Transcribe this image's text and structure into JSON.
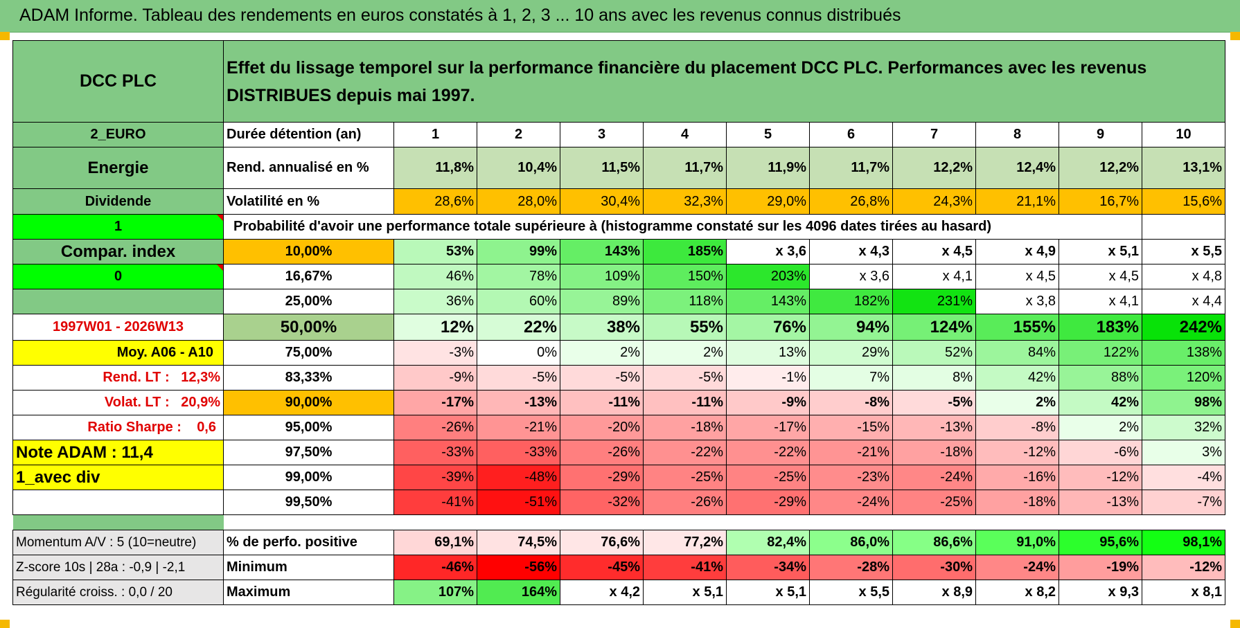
{
  "title": "ADAM Informe. Tableau des rendements en euros constatés à 1, 2, 3 ... 10 ans avec les revenus connus distribués",
  "side": {
    "name": "DCC PLC",
    "currency": "2_EURO",
    "sector": "Energie",
    "type": "Dividende",
    "flag1": "1",
    "compar": "Compar. index",
    "flag0": "0",
    "period": "1997W01 - 2026W13",
    "moy": "Moy. A06 - A10",
    "rend_label": "Rend. LT :",
    "rend_val": "12,3%",
    "volat_label": "Volat. LT :",
    "volat_val": "20,9%",
    "sharpe_label": "Ratio Sharpe :",
    "sharpe_val": "0,6",
    "note": "Note ADAM : 11,4",
    "avec_div": "1_avec div",
    "momentum": "Momentum A/V : 5 (10=neutre)",
    "zscore": "Z-score 10s | 28a : -0,9 | -2,1",
    "regularite": "Régularité croiss. : 0,0 / 20"
  },
  "description": "Effet du lissage temporel sur la performance financière du placement DCC PLC. Performances avec les revenus DISTRIBUES depuis mai 1997.",
  "labels": {
    "duree": "Durée détention (an)",
    "rend": "Rend. annualisé en %",
    "vol": "Volatilité en %",
    "proba": "Probabilité d'avoir une performance totale supérieure à (histogramme constaté sur les 4096 dates tirées au hasard)",
    "pos": "% de perfo. positive",
    "min": "Minimum",
    "max": "Maximum"
  },
  "years": [
    "1",
    "2",
    "3",
    "4",
    "5",
    "6",
    "7",
    "8",
    "9",
    "10"
  ],
  "rend": [
    "11,8%",
    "10,4%",
    "11,5%",
    "11,7%",
    "11,9%",
    "11,7%",
    "12,2%",
    "12,4%",
    "12,2%",
    "13,1%"
  ],
  "vol": [
    "28,6%",
    "28,0%",
    "30,4%",
    "32,3%",
    "29,0%",
    "26,8%",
    "24,3%",
    "21,1%",
    "16,7%",
    "15,6%"
  ],
  "quantiles": [
    {
      "p": "10,00%",
      "v": [
        "53%",
        "99%",
        "143%",
        "185%",
        "x 3,6",
        "x 4,3",
        "x 4,5",
        "x 4,9",
        "x 5,1",
        "x 5,5"
      ]
    },
    {
      "p": "16,67%",
      "v": [
        "46%",
        "78%",
        "109%",
        "150%",
        "203%",
        "x 3,6",
        "x 4,1",
        "x 4,5",
        "x 4,5",
        "x 4,8"
      ]
    },
    {
      "p": "25,00%",
      "v": [
        "36%",
        "60%",
        "89%",
        "118%",
        "143%",
        "182%",
        "231%",
        "x 3,8",
        "x 4,1",
        "x 4,4"
      ]
    },
    {
      "p": "50,00%",
      "v": [
        "12%",
        "22%",
        "38%",
        "55%",
        "76%",
        "94%",
        "124%",
        "155%",
        "183%",
        "242%"
      ]
    },
    {
      "p": "75,00%",
      "v": [
        "-3%",
        "0%",
        "2%",
        "2%",
        "13%",
        "29%",
        "52%",
        "84%",
        "122%",
        "138%"
      ]
    },
    {
      "p": "83,33%",
      "v": [
        "-9%",
        "-5%",
        "-5%",
        "-5%",
        "-1%",
        "7%",
        "8%",
        "42%",
        "88%",
        "120%"
      ]
    },
    {
      "p": "90,00%",
      "v": [
        "-17%",
        "-13%",
        "-11%",
        "-11%",
        "-9%",
        "-8%",
        "-5%",
        "2%",
        "42%",
        "98%"
      ]
    },
    {
      "p": "95,00%",
      "v": [
        "-26%",
        "-21%",
        "-20%",
        "-18%",
        "-17%",
        "-15%",
        "-13%",
        "-8%",
        "2%",
        "32%"
      ]
    },
    {
      "p": "97,50%",
      "v": [
        "-33%",
        "-33%",
        "-26%",
        "-22%",
        "-22%",
        "-21%",
        "-18%",
        "-12%",
        "-6%",
        "3%"
      ]
    },
    {
      "p": "99,00%",
      "v": [
        "-39%",
        "-48%",
        "-29%",
        "-25%",
        "-25%",
        "-23%",
        "-24%",
        "-16%",
        "-12%",
        "-4%"
      ]
    },
    {
      "p": "99,50%",
      "v": [
        "-41%",
        "-51%",
        "-32%",
        "-26%",
        "-29%",
        "-24%",
        "-25%",
        "-18%",
        "-13%",
        "-7%"
      ]
    }
  ],
  "pos": [
    "69,1%",
    "74,5%",
    "76,6%",
    "77,2%",
    "82,4%",
    "86,0%",
    "86,6%",
    "91,0%",
    "95,6%",
    "98,1%"
  ],
  "min": [
    "-46%",
    "-56%",
    "-45%",
    "-41%",
    "-34%",
    "-28%",
    "-30%",
    "-24%",
    "-19%",
    "-12%"
  ],
  "max": [
    "107%",
    "164%",
    "x 4,2",
    "x 5,1",
    "x 5,1",
    "x 5,5",
    "x 8,9",
    "x 8,2",
    "x 9,3",
    "x 8,1"
  ],
  "colors": {
    "header_green": "#82c985",
    "rend_bg": "#c6e0b4",
    "vol_bg": "#ffc000",
    "highlight_yellow": "#ffff00",
    "flag_green": "#00ff00",
    "positive_max": "#00e000",
    "negative_max": "#ff0000"
  }
}
